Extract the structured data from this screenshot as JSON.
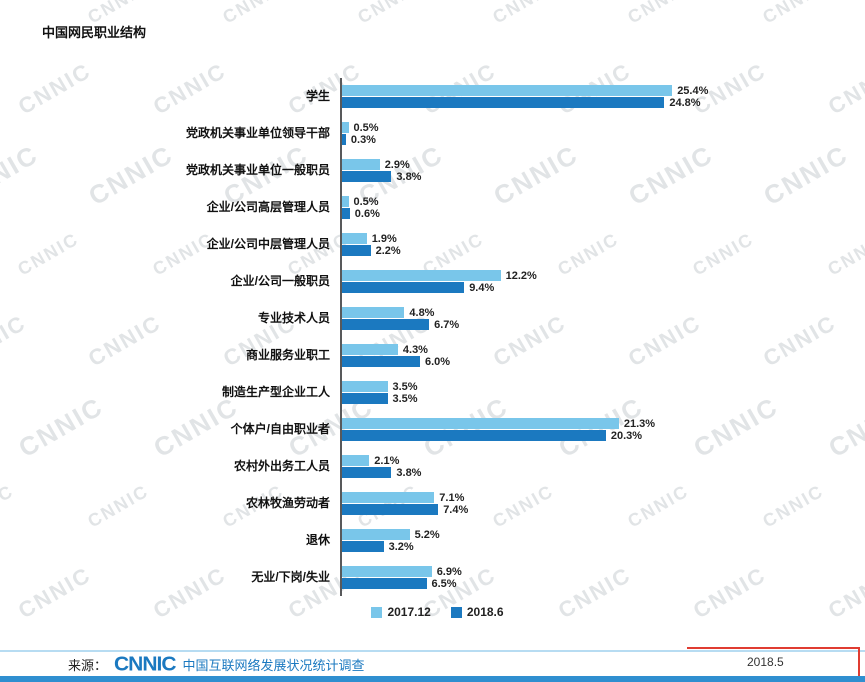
{
  "title": "中国网民职业结构",
  "watermark": "CNNIC",
  "colors": {
    "series1": "#79C6EA",
    "series2": "#1B79C0",
    "footer_blue": "#1B79C0",
    "bottom_strip": "#2F8FD0",
    "red_mark": "#E03C31"
  },
  "footer": {
    "source_label": "来源：",
    "logo": "CNNIC",
    "source_text": "中国互联网络发展状况统计调查",
    "date_note": "2018.5"
  },
  "chart_data": {
    "type": "bar",
    "orientation": "horizontal",
    "title": "中国网民职业结构",
    "xlabel": "",
    "ylabel": "",
    "value_suffix": "%",
    "xlim": [
      0,
      28
    ],
    "grid": false,
    "legend_position": "bottom",
    "categories": [
      "学生",
      "党政机关事业单位领导干部",
      "党政机关事业单位一般职员",
      "企业/公司高层管理人员",
      "企业/公司中层管理人员",
      "企业/公司一般职员",
      "专业技术人员",
      "商业服务业职工",
      "制造生产型企业工人",
      "个体户/自由职业者",
      "农村外出务工人员",
      "农林牧渔劳动者",
      "退休",
      "无业/下岗/失业"
    ],
    "series": [
      {
        "name": "2017.12",
        "values": [
          25.4,
          0.5,
          2.9,
          0.5,
          1.9,
          12.2,
          4.8,
          4.3,
          3.5,
          21.3,
          2.1,
          7.1,
          5.2,
          6.9
        ]
      },
      {
        "name": "2018.6",
        "values": [
          24.8,
          0.3,
          3.8,
          0.6,
          2.2,
          9.4,
          6.7,
          6.0,
          3.5,
          20.3,
          3.8,
          7.4,
          3.2,
          6.5
        ]
      }
    ]
  }
}
